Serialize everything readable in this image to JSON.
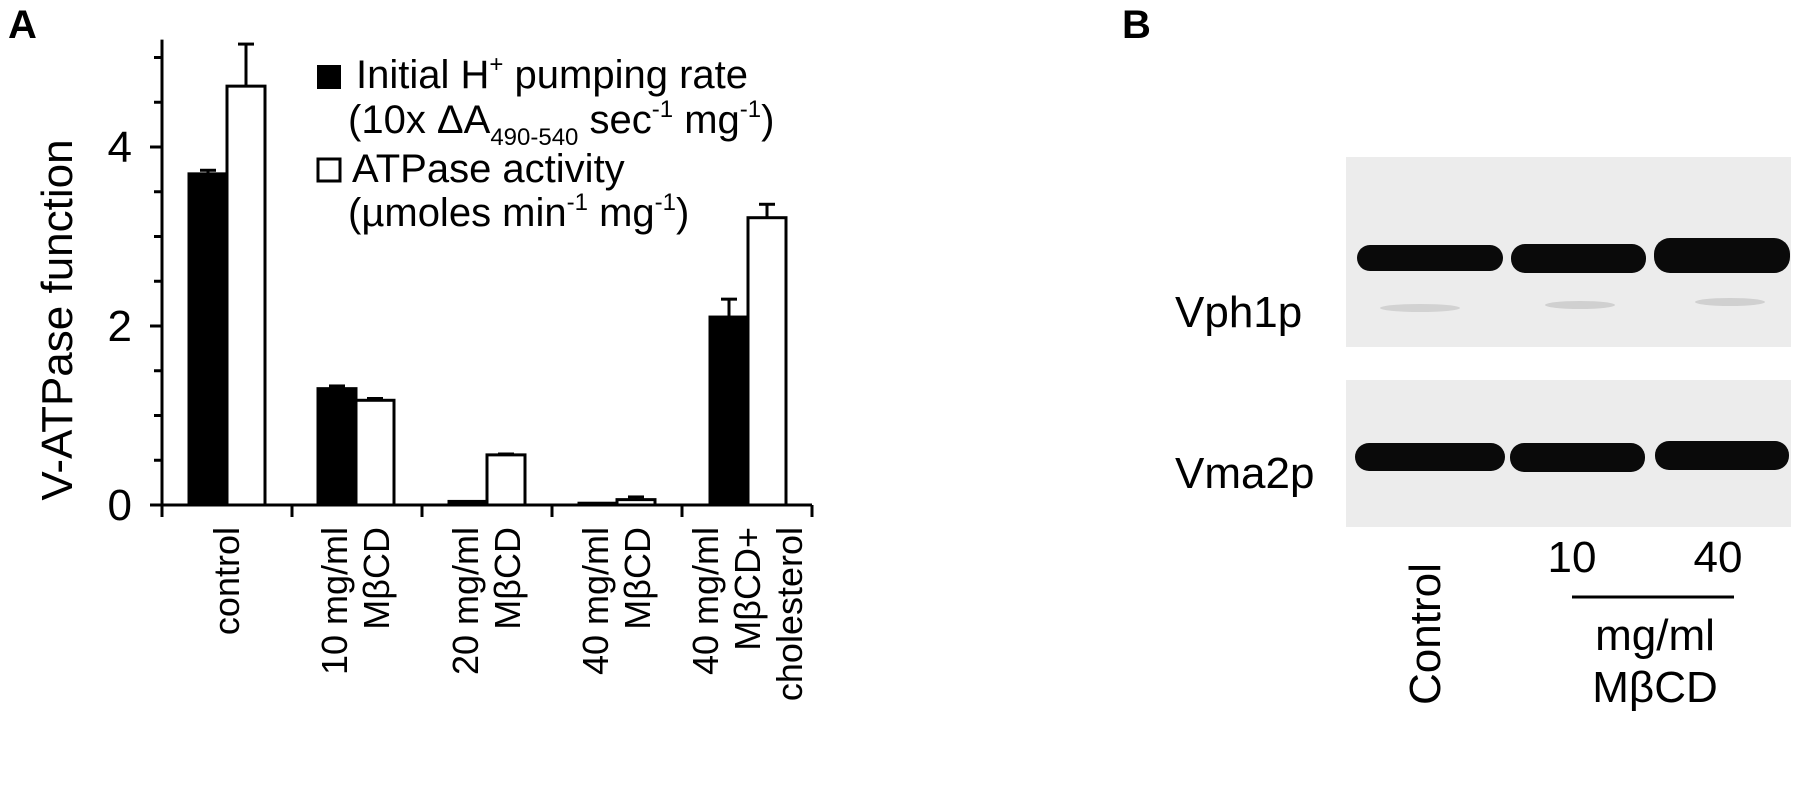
{
  "panels": {
    "a_letter": "A",
    "b_letter": "B"
  },
  "chart_data": {
    "type": "bar",
    "ylabel": "V-ATPase function",
    "ylim": [
      0,
      5.2
    ],
    "yticks": [
      0,
      2,
      4
    ],
    "categories": [
      [
        "control"
      ],
      [
        "10 mg/ml",
        "MβCD"
      ],
      [
        "20 mg/ml",
        "MβCD"
      ],
      [
        "40 mg/ml",
        "MβCD"
      ],
      [
        "40 mg/ml",
        "MβCD+",
        "cholesterol"
      ]
    ],
    "series": [
      {
        "name": "Initial H⁺ pumping rate (10x ΔA490-540 sec⁻¹ mg⁻¹)",
        "legend_line1": "Initial H",
        "legend_line1_sup": "+",
        "legend_line1_tail": " pumping rate",
        "legend_line2": "(10x ΔA",
        "legend_line2_sub": "490-540",
        "legend_line2_mid": " sec",
        "legend_line2_sup1": "-1",
        "legend_line2_mid2": " mg",
        "legend_line2_sup2": "-1",
        "legend_line2_tail": ")",
        "color": "#000000",
        "values": [
          3.7,
          1.3,
          0.04,
          0.02,
          2.1
        ],
        "errors": [
          0.04,
          0.03,
          0.0,
          0.0,
          0.2
        ]
      },
      {
        "name": "ATPase activity (µmoles min⁻¹ mg⁻¹)",
        "legend_line1": "ATPase activity",
        "legend_line2": "(µmoles min",
        "legend_line2_sup1": "-1",
        "legend_line2_mid2": " mg",
        "legend_line2_sup2": "-1",
        "legend_line2_tail": ")",
        "color": "#ffffff",
        "values": [
          4.68,
          1.17,
          0.56,
          0.06,
          3.21
        ],
        "errors": [
          0.47,
          0.02,
          0.01,
          0.03,
          0.15
        ]
      }
    ]
  },
  "blot": {
    "bands": [
      "Vph1p",
      "Vma2p"
    ],
    "lanes": [
      "Control",
      "10",
      "40"
    ],
    "group_label_line1": "mg/ml",
    "group_label_line2": "MβCD"
  }
}
